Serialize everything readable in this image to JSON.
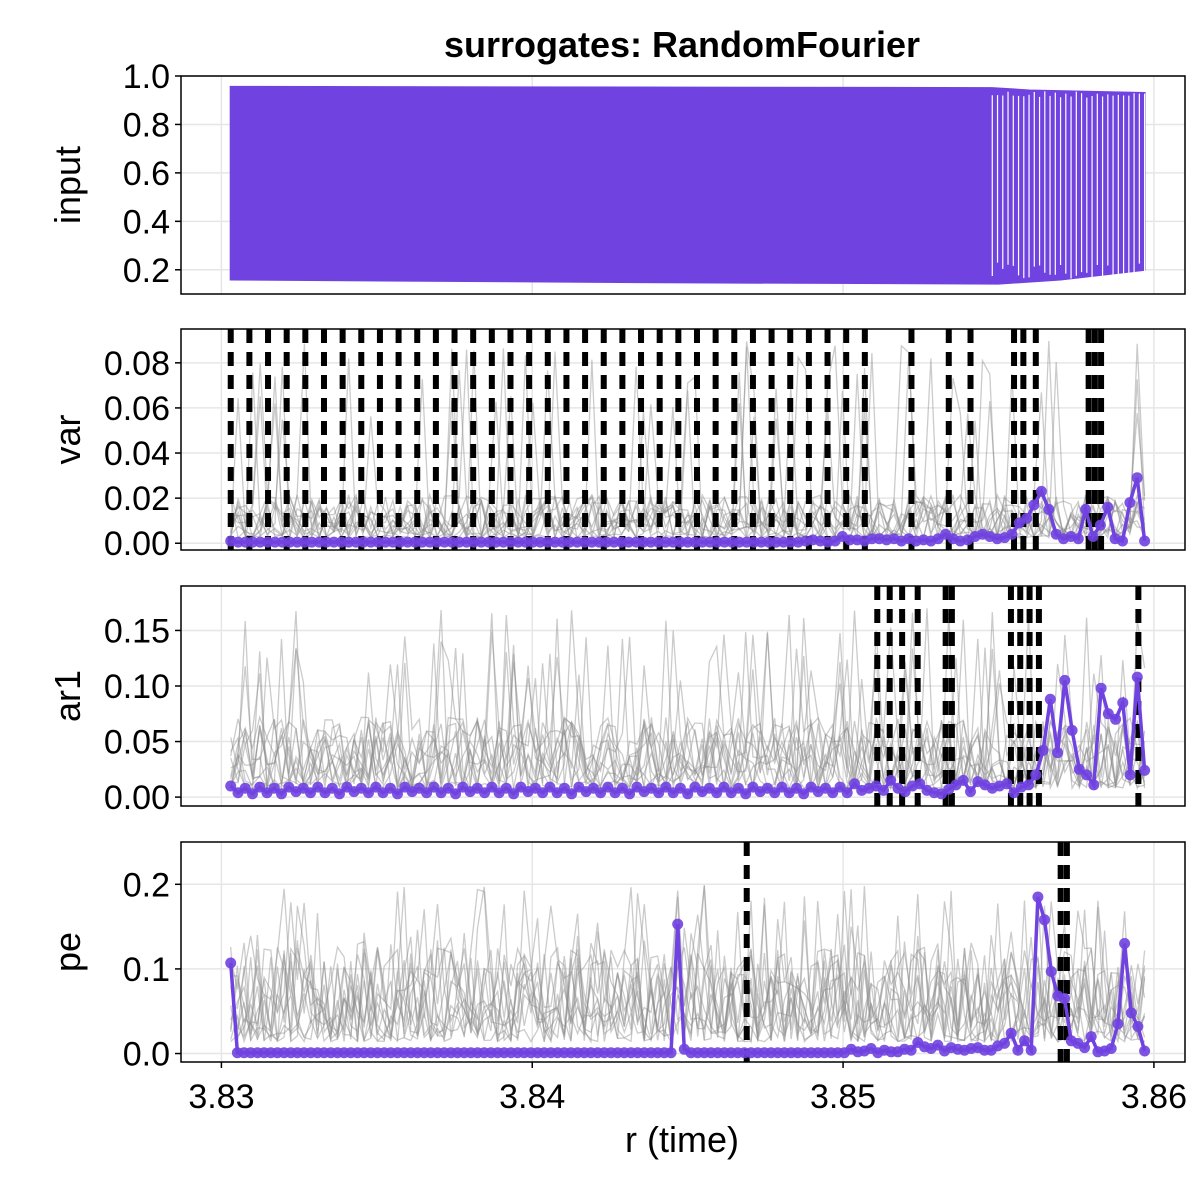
{
  "chart_data": {
    "type": "line",
    "title": "surrogates: RandomFourier",
    "xlabel": "r (time)",
    "xlim": [
      3.8287,
      3.861
    ],
    "xticks": [
      3.83,
      3.84,
      3.85,
      3.86
    ],
    "xtick_labels": [
      "3.83",
      "3.84",
      "3.85",
      "3.86"
    ],
    "colors": {
      "accent": "#7043e0",
      "surrogate": "#8c8c8c",
      "change": "#000000",
      "grid": "#e6e6e6"
    },
    "panels": [
      {
        "key": "input",
        "ylabel": "input",
        "ylim": [
          0.1,
          1.0
        ],
        "yticks": [
          0.2,
          0.4,
          0.6,
          0.8,
          1.0
        ],
        "ytick_labels": [
          "0.2",
          "0.4",
          "0.6",
          "0.8",
          "1.0"
        ],
        "series_input": {
          "name": "input",
          "x_start": 3.8303,
          "x_end": 3.8597,
          "upper": [
            [
              3.8303,
              0.955
            ],
            [
              3.845,
              0.952
            ],
            [
              3.8548,
              0.95
            ],
            [
              3.856,
              0.94
            ],
            [
              3.8597,
              0.93
            ]
          ],
          "lower": [
            [
              3.8303,
              0.16
            ],
            [
              3.845,
              0.148
            ],
            [
              3.855,
              0.143
            ],
            [
              3.857,
              0.16
            ],
            [
              3.8597,
              0.2
            ]
          ]
        },
        "change_points": []
      },
      {
        "key": "var",
        "ylabel": "var",
        "ylim": [
          -0.003,
          0.095
        ],
        "yticks": [
          0.0,
          0.02,
          0.04,
          0.06,
          0.08
        ],
        "ytick_labels": [
          "0.00",
          "0.02",
          "0.04",
          "0.06",
          "0.08"
        ],
        "main_series": {
          "name": "var",
          "x_start": 3.8303,
          "x_end": 3.8597,
          "values": [
            0.001,
            0.0005,
            0.0005,
            0.0005,
            0.0005,
            0.0005,
            0.0005,
            0.0005,
            0.0005,
            0.0005,
            0.0005,
            0.0005,
            0.0005,
            0.0005,
            0.0005,
            0.0005,
            0.0005,
            0.0005,
            0.0005,
            0.0005,
            0.0005,
            0.0005,
            0.0005,
            0.0005,
            0.0005,
            0.0005,
            0.0005,
            0.0005,
            0.0005,
            0.0005,
            0.0005,
            0.0005,
            0.0005,
            0.0005,
            0.0005,
            0.0005,
            0.0005,
            0.0005,
            0.0005,
            0.0005,
            0.0005,
            0.0005,
            0.0005,
            0.0005,
            0.0005,
            0.0005,
            0.0005,
            0.0005,
            0.0005,
            0.0005,
            0.0005,
            0.0005,
            0.0005,
            0.0005,
            0.0005,
            0.0005,
            0.0005,
            0.0005,
            0.0005,
            0.0005,
            0.0005,
            0.0005,
            0.0005,
            0.0005,
            0.0005,
            0.0005,
            0.0005,
            0.0005,
            0.0005,
            0.0005,
            0.0005,
            0.0005,
            0.0005,
            0.0005,
            0.0005,
            0.0005,
            0.0005,
            0.0005,
            0.001,
            0.0015,
            0.001,
            0.0005,
            0.001,
            0.003,
            0.0015,
            0.0015,
            0.001,
            0.002,
            0.002,
            0.0015,
            0.002,
            0.001,
            0.002,
            0.001,
            0.0015,
            0.001,
            0.002,
            0.004,
            0.002,
            0.001,
            0.0015,
            0.003,
            0.004,
            0.003,
            0.002,
            0.0025,
            0.004,
            0.009,
            0.011,
            0.017,
            0.023,
            0.015,
            0.004,
            0.002,
            0.003,
            0.002,
            0.015,
            0.003,
            0.008,
            0.016,
            0.002,
            0.001,
            0.018,
            0.029,
            0.001
          ]
        },
        "surrogate_count": 12,
        "surrogate_base": 0.012,
        "surrogate_peak": 0.09,
        "change_points": [
          3.8303,
          3.8309,
          3.8315,
          3.8321,
          3.8327,
          3.8333,
          3.8339,
          3.8345,
          3.8351,
          3.8357,
          3.8363,
          3.8369,
          3.8375,
          3.8381,
          3.8387,
          3.8393,
          3.8399,
          3.8405,
          3.8411,
          3.8417,
          3.8423,
          3.8429,
          3.8435,
          3.8441,
          3.8447,
          3.8453,
          3.8459,
          3.8465,
          3.8471,
          3.8477,
          3.8483,
          3.8489,
          3.8495,
          3.8501,
          3.8507,
          3.8522,
          3.8534,
          3.8541,
          3.8555,
          3.8558,
          3.8562,
          3.8579,
          3.8581,
          3.8583
        ]
      },
      {
        "key": "ar1",
        "ylabel": "ar1",
        "ylim": [
          -0.008,
          0.19
        ],
        "yticks": [
          0.0,
          0.05,
          0.1,
          0.15
        ],
        "ytick_labels": [
          "0.00",
          "0.05",
          "0.10",
          "0.15"
        ],
        "main_series": {
          "name": "ar1",
          "x_start": 3.8303,
          "x_end": 3.8597,
          "values": [
            0.01,
            0.004,
            0.008,
            0.003,
            0.009,
            0.004,
            0.008,
            0.003,
            0.009,
            0.005,
            0.008,
            0.004,
            0.009,
            0.004,
            0.008,
            0.003,
            0.009,
            0.005,
            0.008,
            0.004,
            0.009,
            0.004,
            0.008,
            0.003,
            0.009,
            0.005,
            0.008,
            0.004,
            0.009,
            0.004,
            0.008,
            0.003,
            0.009,
            0.005,
            0.008,
            0.004,
            0.009,
            0.004,
            0.008,
            0.003,
            0.009,
            0.005,
            0.008,
            0.004,
            0.009,
            0.004,
            0.008,
            0.003,
            0.009,
            0.005,
            0.008,
            0.004,
            0.009,
            0.004,
            0.008,
            0.003,
            0.009,
            0.005,
            0.008,
            0.004,
            0.009,
            0.004,
            0.008,
            0.003,
            0.009,
            0.005,
            0.008,
            0.004,
            0.009,
            0.004,
            0.008,
            0.003,
            0.009,
            0.005,
            0.008,
            0.004,
            0.009,
            0.004,
            0.008,
            0.003,
            0.009,
            0.005,
            0.008,
            0.004,
            0.009,
            0.004,
            0.012,
            0.006,
            0.008,
            0.01,
            0.006,
            0.015,
            0.008,
            0.005,
            0.01,
            0.012,
            0.006,
            0.004,
            0.003,
            0.007,
            0.011,
            0.015,
            0.005,
            0.014,
            0.011,
            0.008,
            0.01,
            0.012,
            0.004,
            0.009,
            0.011,
            0.02,
            0.042,
            0.088,
            0.04,
            0.105,
            0.06,
            0.025,
            0.02,
            0.011,
            0.098,
            0.075,
            0.07,
            0.085,
            0.02,
            0.108,
            0.024
          ]
        },
        "surrogate_count": 12,
        "surrogate_base": 0.04,
        "surrogate_peak": 0.17,
        "change_points": [
          3.8511,
          3.8515,
          3.8519,
          3.8524,
          3.8533,
          3.8535,
          3.8554,
          3.8557,
          3.856,
          3.8563,
          3.8595
        ]
      },
      {
        "key": "pe",
        "ylabel": "pe",
        "ylim": [
          -0.01,
          0.25
        ],
        "yticks": [
          0.0,
          0.1,
          0.2
        ],
        "ytick_labels": [
          "0.0",
          "0.1",
          "0.2"
        ],
        "main_series": {
          "name": "pe",
          "x_start": 3.8303,
          "x_end": 3.8597,
          "values": [
            0.107,
            0.001,
            0.001,
            0.001,
            0.001,
            0.001,
            0.001,
            0.001,
            0.001,
            0.001,
            0.001,
            0.001,
            0.001,
            0.001,
            0.001,
            0.001,
            0.001,
            0.001,
            0.001,
            0.001,
            0.001,
            0.001,
            0.001,
            0.001,
            0.001,
            0.001,
            0.001,
            0.001,
            0.001,
            0.001,
            0.001,
            0.001,
            0.001,
            0.001,
            0.001,
            0.001,
            0.001,
            0.001,
            0.001,
            0.001,
            0.001,
            0.001,
            0.001,
            0.001,
            0.001,
            0.001,
            0.001,
            0.001,
            0.001,
            0.001,
            0.001,
            0.001,
            0.001,
            0.001,
            0.001,
            0.001,
            0.001,
            0.001,
            0.001,
            0.001,
            0.001,
            0.001,
            0.001,
            0.001,
            0.001,
            0.001,
            0.001,
            0.153,
            0.005,
            0.001,
            0.001,
            0.001,
            0.001,
            0.001,
            0.001,
            0.001,
            0.001,
            0.001,
            0.001,
            0.001,
            0.001,
            0.001,
            0.001,
            0.001,
            0.001,
            0.001,
            0.001,
            0.001,
            0.001,
            0.001,
            0.001,
            0.001,
            0.001,
            0.005,
            0.002,
            0.003,
            0.006,
            0.001,
            0.004,
            0.002,
            0.002,
            0.005,
            0.004,
            0.013,
            0.008,
            0.006,
            0.01,
            0.003,
            0.007,
            0.005,
            0.004,
            0.006,
            0.007,
            0.004,
            0.004,
            0.009,
            0.012,
            0.024,
            0.004,
            0.015,
            0.004,
            0.185,
            0.158,
            0.097,
            0.068,
            0.065,
            0.015,
            0.012,
            0.007,
            0.02,
            0.002,
            0.003,
            0.006,
            0.035,
            0.13,
            0.048,
            0.032,
            0.003
          ]
        },
        "surrogate_count": 12,
        "surrogate_base": 0.07,
        "surrogate_peak": 0.2,
        "change_points": [
          3.8469,
          3.857,
          3.8572
        ]
      }
    ]
  }
}
